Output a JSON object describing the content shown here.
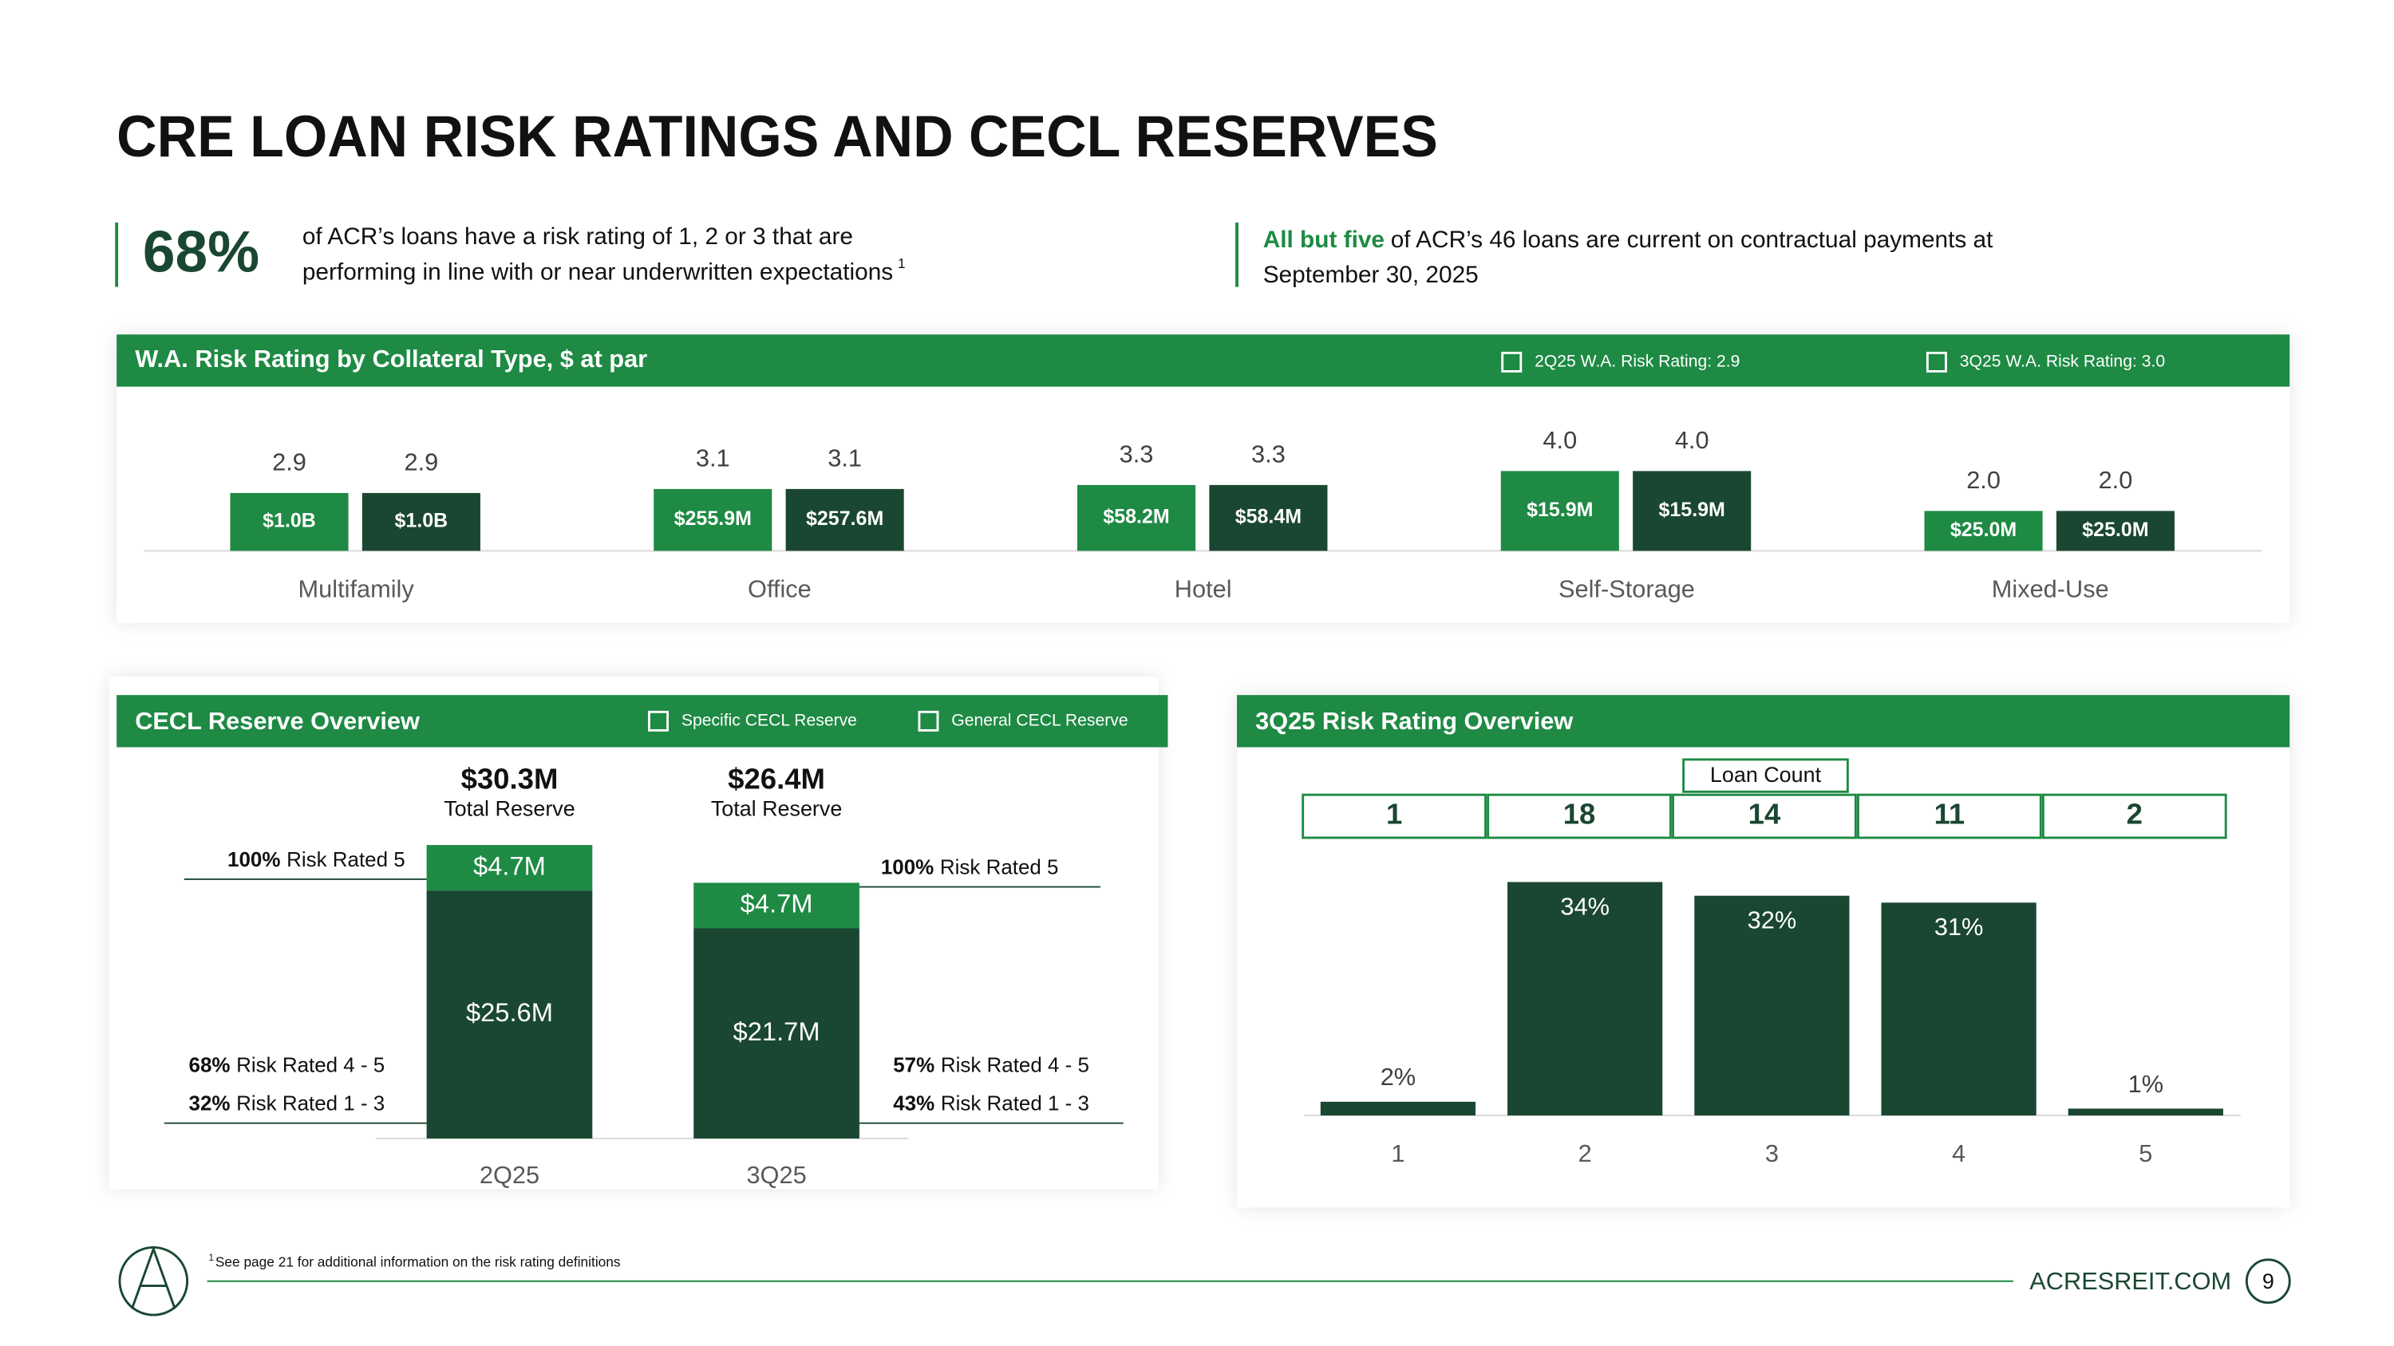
{
  "title": "CRE LOAN RISK RATINGS AND CECL RESERVES",
  "callouts": [
    {
      "stat": "68%",
      "lines": [
        "of ACR’s loans have a risk rating of 1, 2 or 3 that are",
        "performing in line with or near underwritten expectations"
      ],
      "footnote_ref": "1"
    },
    {
      "bold": "All but five",
      "lines": [
        "of ACR’s 46 loans are current on contractual payments at",
        "September 30, 2025"
      ]
    }
  ],
  "chart_data": [
    {
      "type": "grouped_bar",
      "title": "W.A. Risk Rating by Collateral Type, $ at par",
      "categories": [
        "Multifamily",
        "Office",
        "Hotel",
        "Self-Storage",
        "Mixed-Use"
      ],
      "ylim": [
        0,
        8
      ],
      "series": [
        {
          "name": "2Q25 W.A. Risk Rating: 2.9",
          "color": "#1e8a44",
          "values": [
            2.9,
            3.1,
            3.3,
            4.0,
            2.0
          ],
          "value_labels": [
            "2.9",
            "3.1",
            "3.3",
            "4.0",
            "2.0"
          ],
          "par_labels": [
            "$1.0B",
            "$255.9M",
            "$58.2M",
            "$15.9M",
            "$25.0M"
          ]
        },
        {
          "name": "3Q25 W.A. Risk Rating: 3.0",
          "color": "#1a4731",
          "values": [
            2.9,
            3.1,
            3.3,
            4.0,
            2.0
          ],
          "value_labels": [
            "2.9",
            "3.1",
            "3.3",
            "4.0",
            "2.0"
          ],
          "par_labels": [
            "$1.0B",
            "$257.6M",
            "$58.4M",
            "$15.9M",
            "$25.0M"
          ]
        }
      ]
    },
    {
      "type": "stacked_bar",
      "title": "CECL Reserve Overview",
      "categories": [
        "2Q25",
        "3Q25"
      ],
      "ylim": [
        0,
        32
      ],
      "series": [
        {
          "name": "Specific CECL Reserve",
          "color": "#1e8a44",
          "values": [
            4.7,
            4.7
          ],
          "value_labels": [
            "$4.7M",
            "$4.7M"
          ]
        },
        {
          "name": "General CECL Reserve",
          "color": "#1a4731",
          "values": [
            25.6,
            21.7
          ],
          "value_labels": [
            "$25.6M",
            "$21.7M"
          ]
        }
      ],
      "totals": {
        "values": [
          30.3,
          26.4
        ],
        "value_labels": [
          "$30.3M",
          "$26.4M"
        ],
        "caption": "Total Reserve"
      },
      "annotations": [
        [
          {
            "bold": "100%",
            "text": "Risk Rated 5"
          },
          {
            "bold": "68%",
            "text": "Risk Rated 4 - 5"
          },
          {
            "bold": "32%",
            "text": "Risk Rated 1 - 3"
          }
        ],
        [
          {
            "bold": "100%",
            "text": "Risk Rated 5"
          },
          {
            "bold": "57%",
            "text": "Risk Rated 4 - 5"
          },
          {
            "bold": "43%",
            "text": "Risk Rated 1 - 3"
          }
        ]
      ]
    },
    {
      "type": "bar",
      "title": "3Q25 Risk Rating Overview",
      "categories": [
        "1",
        "2",
        "3",
        "4",
        "5"
      ],
      "values": [
        2,
        34,
        32,
        31,
        1
      ],
      "value_labels": [
        "2%",
        "34%",
        "32%",
        "31%",
        "1%"
      ],
      "color": "#1a4731",
      "ylim": [
        0,
        40
      ],
      "loan_count": {
        "label": "Loan Count",
        "values": [
          "1",
          "18",
          "14",
          "11",
          "2"
        ]
      }
    }
  ],
  "footnote": {
    "marker": "1",
    "text": "See page 21 for additional information on the risk rating definitions"
  },
  "footer": {
    "site": "ACRESREIT.COM",
    "page": "9"
  }
}
